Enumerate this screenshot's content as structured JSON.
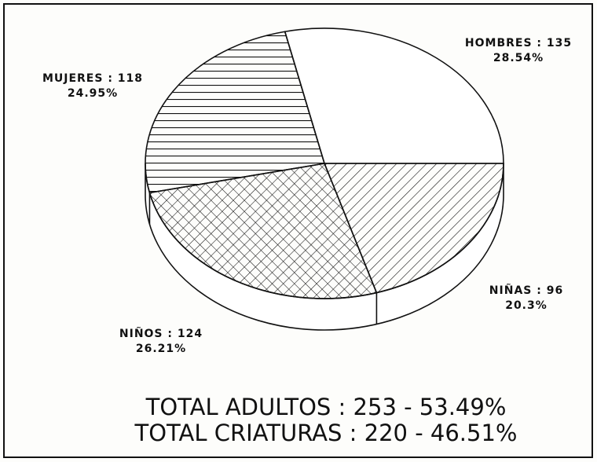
{
  "chart_data": {
    "type": "pie3d",
    "value_labels": [
      "HOMBRES : 135",
      "NIÑAS : 96",
      "NIÑOS : 124",
      "MUJERES : 118"
    ],
    "values": [
      135,
      96,
      124,
      118
    ],
    "percentages": [
      28.54,
      20.3,
      26.21,
      24.95
    ],
    "percentage_labels": [
      "28.54%",
      "20.3%",
      "26.21%",
      "24.95%"
    ],
    "fills": [
      "none",
      "diagonal",
      "crosshatch",
      "horizontal"
    ],
    "color": "#111111",
    "annotations": [
      "TOTAL ADULTOS : 253 - 53.49%",
      "TOTAL CRIATURAS : 220 - 46.51%"
    ]
  }
}
